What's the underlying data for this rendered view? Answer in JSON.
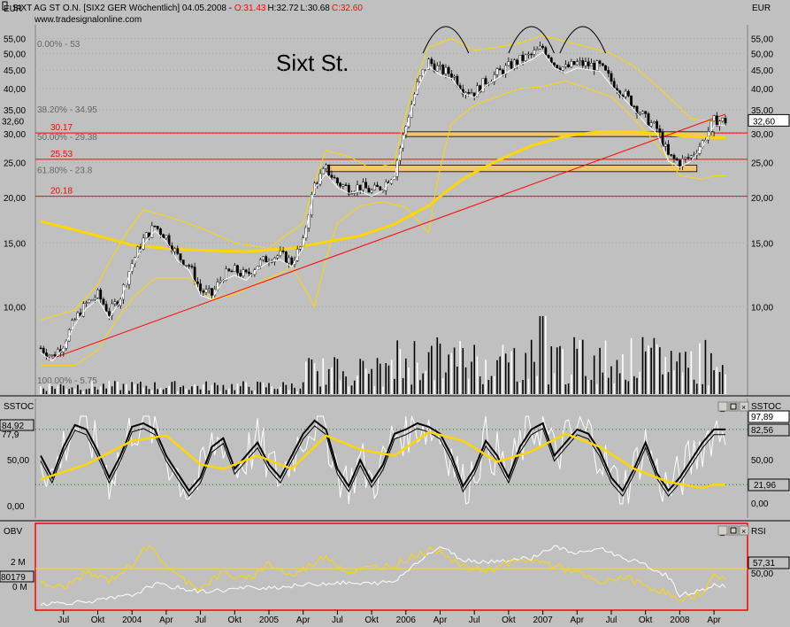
{
  "header": {
    "unit_left": "EUR",
    "unit_right": "EUR",
    "title_prefix": "SIXT AG ST O.N. [SIX2 GER  Wöchentlich] 04.05.2008 - ",
    "open": "O:31.43",
    "high": "H:32.72",
    "low": "L:30.68",
    "close": "C:32.60",
    "website": "www.tradesignalonline.com"
  },
  "annotation": "Sixt St.",
  "colors": {
    "background": "#c0c0c0",
    "sma": "#ffd700",
    "bollinger": "#ffd700",
    "support_lines": "#ff0000",
    "zones": "#f0c674",
    "up_candle": "#ffffff",
    "down_candle": "#000000",
    "frame": "#ff0000",
    "stoch_k": "#000000",
    "stoch_white": "#ffffff"
  },
  "chart_data": [
    {
      "type": "candlestick",
      "title": "SIXT AG ST O.N. [SIX2 GER Wöchentlich]",
      "ylabel": "EUR",
      "y_scale": "log",
      "ylim": [
        6.8,
        58
      ],
      "y_ticks": [
        "55,00",
        "50,00",
        "45,00",
        "40,00",
        "35,00",
        "30,00",
        "25,00",
        "20,00",
        "15,00",
        "10,00"
      ],
      "last_value": "32,60",
      "fib_levels": [
        {
          "label": "0.00% - 53",
          "value": 53
        },
        {
          "label": "38.20% - 34.95",
          "value": 34.95
        },
        {
          "label": "50.00% - 29.38",
          "value": 29.38
        },
        {
          "label": "61.80% - 23.8",
          "value": 23.8
        },
        {
          "label": "100.00% - 5.75",
          "value": 5.75
        }
      ],
      "support_levels": [
        {
          "label": "30.17",
          "value": 30.17
        },
        {
          "label": "25.53",
          "value": 25.53
        },
        {
          "label": "20.18",
          "value": 20.18
        }
      ],
      "x_labels": [
        "Jul",
        "Okt",
        "2004",
        "Apr",
        "Jul",
        "Okt",
        "2005",
        "Apr",
        "Jul",
        "Okt",
        "2006",
        "Apr",
        "Jul",
        "Okt",
        "2007",
        "Apr",
        "Jul",
        "Okt",
        "2008",
        "Apr"
      ],
      "x_index": [
        2,
        5,
        8,
        11,
        14,
        17,
        20,
        23,
        26,
        29,
        32,
        35,
        38,
        41,
        44,
        47,
        50,
        53,
        56,
        59
      ],
      "close_anchors": [
        [
          0,
          7.7
        ],
        [
          1,
          7.3
        ],
        [
          2,
          7.9
        ],
        [
          3,
          9.2
        ],
        [
          4,
          10.2
        ],
        [
          5,
          10.8
        ],
        [
          6,
          9.6
        ],
        [
          7,
          10.7
        ],
        [
          8,
          13.2
        ],
        [
          9,
          15.3
        ],
        [
          10,
          16.7
        ],
        [
          11,
          15.6
        ],
        [
          12,
          13.8
        ],
        [
          13,
          13.0
        ],
        [
          14,
          11.1
        ],
        [
          15,
          10.8
        ],
        [
          16,
          12.2
        ],
        [
          17,
          12.6
        ],
        [
          18,
          12.2
        ],
        [
          19,
          13.1
        ],
        [
          20,
          13.7
        ],
        [
          21,
          13.9
        ],
        [
          22,
          13.3
        ],
        [
          23,
          15.0
        ],
        [
          24,
          21.8
        ],
        [
          25,
          24.0
        ],
        [
          26,
          22.0
        ],
        [
          27,
          21.2
        ],
        [
          28,
          21.5
        ],
        [
          29,
          20.8
        ],
        [
          30,
          21.6
        ],
        [
          31,
          23.5
        ],
        [
          32,
          31.5
        ],
        [
          33,
          41.0
        ],
        [
          34,
          47.5
        ],
        [
          35,
          45.0
        ],
        [
          36,
          44.0
        ],
        [
          37,
          40.0
        ],
        [
          38,
          39.0
        ],
        [
          39,
          42.0
        ],
        [
          40,
          44.0
        ],
        [
          41,
          46.0
        ],
        [
          42,
          48.0
        ],
        [
          43,
          49.5
        ],
        [
          44,
          52.0
        ],
        [
          45,
          47.0
        ],
        [
          46,
          45.5
        ],
        [
          47,
          47.0
        ],
        [
          48,
          46.5
        ],
        [
          49,
          46.0
        ],
        [
          50,
          42.0
        ],
        [
          51,
          39.0
        ],
        [
          52,
          36.0
        ],
        [
          53,
          33.0
        ],
        [
          54,
          31.0
        ],
        [
          55,
          26.0
        ],
        [
          56,
          25.0
        ],
        [
          57,
          26.0
        ],
        [
          58,
          28.5
        ],
        [
          59,
          32.6
        ]
      ],
      "sma_anchors": [
        [
          0,
          17.2
        ],
        [
          3,
          16.3
        ],
        [
          8,
          14.8
        ],
        [
          12,
          14.4
        ],
        [
          18,
          14.2
        ],
        [
          22,
          14.5
        ],
        [
          25,
          15.1
        ],
        [
          28,
          15.7
        ],
        [
          31,
          16.9
        ],
        [
          34,
          19.0
        ],
        [
          37,
          22.5
        ],
        [
          40,
          25.3
        ],
        [
          43,
          27.8
        ],
        [
          46,
          29.6
        ],
        [
          49,
          30.4
        ],
        [
          52,
          30.4
        ],
        [
          55,
          29.9
        ],
        [
          57,
          29.5
        ],
        [
          59,
          29.3
        ]
      ],
      "bollinger_upper": [
        [
          0,
          9.2
        ],
        [
          3,
          9.8
        ],
        [
          5,
          11.5
        ],
        [
          9,
          18.5
        ],
        [
          11,
          17.8
        ],
        [
          14,
          16.5
        ],
        [
          17,
          15.0
        ],
        [
          20,
          14.5
        ],
        [
          23,
          17.0
        ],
        [
          25,
          27.0
        ],
        [
          27,
          26.0
        ],
        [
          29,
          24.0
        ],
        [
          31,
          25.0
        ],
        [
          34,
          52.0
        ],
        [
          36,
          55.0
        ],
        [
          38,
          51.0
        ],
        [
          40,
          52.0
        ],
        [
          42,
          53.5
        ],
        [
          44,
          56.0
        ],
        [
          46,
          54.0
        ],
        [
          48,
          52.0
        ],
        [
          50,
          50.0
        ],
        [
          52,
          46.0
        ],
        [
          55,
          38.0
        ],
        [
          57,
          33.0
        ],
        [
          59,
          32.5
        ]
      ],
      "bollinger_lower": [
        [
          0,
          6.9
        ],
        [
          3,
          6.9
        ],
        [
          5,
          7.6
        ],
        [
          8,
          10.5
        ],
        [
          10,
          12.0
        ],
        [
          13,
          12.0
        ],
        [
          15,
          10.5
        ],
        [
          17,
          10.8
        ],
        [
          20,
          12.0
        ],
        [
          22,
          12.8
        ],
        [
          24,
          10.0
        ],
        [
          26,
          17.0
        ],
        [
          28,
          19.0
        ],
        [
          30,
          19.5
        ],
        [
          32,
          18.8
        ],
        [
          34,
          16.0
        ],
        [
          36,
          32.0
        ],
        [
          38,
          36.0
        ],
        [
          40,
          38.0
        ],
        [
          42,
          40.0
        ],
        [
          44,
          40.5
        ],
        [
          46,
          42.0
        ],
        [
          48,
          40.0
        ],
        [
          50,
          38.0
        ],
        [
          52,
          33.0
        ],
        [
          54,
          28.0
        ],
        [
          56,
          23.0
        ],
        [
          58,
          22.5
        ],
        [
          59,
          23.0
        ]
      ],
      "trendline": {
        "from": [
          1,
          7.2
        ],
        "to": [
          60,
          34.0
        ]
      },
      "zones": [
        {
          "from_index": 32,
          "to_index": 59,
          "low": 29.5,
          "high": 30.4
        },
        {
          "from_index": 25,
          "to_index": 57.5,
          "low": 23.6,
          "high": 24.6
        }
      ],
      "volume_max_index": 44
    },
    {
      "type": "line",
      "title": "SSTOC",
      "ylim": [
        0,
        100
      ],
      "y_ticks": [
        "0,00",
        "50,00"
      ],
      "reference_lines": [
        84.92,
        21.96
      ],
      "value_labels": [
        "84,92",
        "77,9",
        "97,89",
        "82,56",
        "21,96"
      ],
      "k_anchors": [
        [
          0,
          55
        ],
        [
          1,
          30
        ],
        [
          2,
          65
        ],
        [
          3,
          90
        ],
        [
          4,
          85
        ],
        [
          5,
          60
        ],
        [
          6,
          30
        ],
        [
          7,
          55
        ],
        [
          8,
          88
        ],
        [
          9,
          92
        ],
        [
          10,
          85
        ],
        [
          11,
          55
        ],
        [
          12,
          35
        ],
        [
          13,
          15
        ],
        [
          14,
          30
        ],
        [
          15,
          65
        ],
        [
          16,
          75
        ],
        [
          17,
          40
        ],
        [
          18,
          55
        ],
        [
          19,
          70
        ],
        [
          20,
          45
        ],
        [
          21,
          30
        ],
        [
          22,
          55
        ],
        [
          23,
          80
        ],
        [
          24,
          95
        ],
        [
          25,
          85
        ],
        [
          26,
          40
        ],
        [
          27,
          20
        ],
        [
          28,
          50
        ],
        [
          29,
          25
        ],
        [
          30,
          45
        ],
        [
          31,
          80
        ],
        [
          32,
          85
        ],
        [
          33,
          92
        ],
        [
          34,
          88
        ],
        [
          35,
          80
        ],
        [
          36,
          55
        ],
        [
          37,
          20
        ],
        [
          38,
          40
        ],
        [
          39,
          72
        ],
        [
          40,
          55
        ],
        [
          41,
          30
        ],
        [
          42,
          65
        ],
        [
          43,
          85
        ],
        [
          44,
          92
        ],
        [
          45,
          55
        ],
        [
          46,
          70
        ],
        [
          47,
          85
        ],
        [
          48,
          80
        ],
        [
          49,
          60
        ],
        [
          50,
          30
        ],
        [
          51,
          15
        ],
        [
          52,
          40
        ],
        [
          53,
          70
        ],
        [
          54,
          35
        ],
        [
          55,
          15
        ],
        [
          56,
          30
        ],
        [
          57,
          50
        ],
        [
          58,
          70
        ],
        [
          59,
          85
        ]
      ],
      "signal_anchors": [
        [
          0,
          28
        ],
        [
          4,
          45
        ],
        [
          8,
          72
        ],
        [
          11,
          78
        ],
        [
          14,
          45
        ],
        [
          16,
          40
        ],
        [
          19,
          55
        ],
        [
          22,
          40
        ],
        [
          25,
          78
        ],
        [
          28,
          62
        ],
        [
          31,
          55
        ],
        [
          34,
          82
        ],
        [
          37,
          72
        ],
        [
          40,
          48
        ],
        [
          43,
          60
        ],
        [
          46,
          80
        ],
        [
          49,
          65
        ],
        [
          52,
          40
        ],
        [
          55,
          25
        ],
        [
          58,
          18
        ],
        [
          59,
          22
        ]
      ]
    },
    {
      "type": "line",
      "title": "OBV",
      "secondary_title": "RSI",
      "y_ticks": [
        "2 M",
        "0 M"
      ],
      "left_value": "80179",
      "right_labels": [
        "57,31",
        "50,00"
      ],
      "obv_anchors": [
        [
          0,
          4
        ],
        [
          2,
          5
        ],
        [
          5,
          8
        ],
        [
          8,
          15
        ],
        [
          10,
          30
        ],
        [
          12,
          25
        ],
        [
          14,
          20
        ],
        [
          16,
          22
        ],
        [
          18,
          25
        ],
        [
          21,
          26
        ],
        [
          24,
          30
        ],
        [
          26,
          32
        ],
        [
          28,
          30
        ],
        [
          31,
          33
        ],
        [
          33,
          60
        ],
        [
          35,
          80
        ],
        [
          37,
          62
        ],
        [
          39,
          60
        ],
        [
          41,
          62
        ],
        [
          43,
          65
        ],
        [
          45,
          80
        ],
        [
          47,
          70
        ],
        [
          49,
          78
        ],
        [
          51,
          65
        ],
        [
          53,
          55
        ],
        [
          55,
          40
        ],
        [
          56,
          15
        ],
        [
          58,
          22
        ],
        [
          59,
          28
        ]
      ],
      "rsi_anchors": [
        [
          0,
          30
        ],
        [
          2,
          25
        ],
        [
          4,
          45
        ],
        [
          6,
          35
        ],
        [
          8,
          55
        ],
        [
          9,
          80
        ],
        [
          10,
          72
        ],
        [
          12,
          40
        ],
        [
          14,
          25
        ],
        [
          16,
          45
        ],
        [
          18,
          35
        ],
        [
          20,
          58
        ],
        [
          22,
          40
        ],
        [
          25,
          68
        ],
        [
          27,
          45
        ],
        [
          29,
          52
        ],
        [
          31,
          55
        ],
        [
          33,
          70
        ],
        [
          35,
          76
        ],
        [
          37,
          52
        ],
        [
          39,
          48
        ],
        [
          41,
          58
        ],
        [
          43,
          62
        ],
        [
          45,
          55
        ],
        [
          47,
          45
        ],
        [
          49,
          30
        ],
        [
          51,
          40
        ],
        [
          53,
          28
        ],
        [
          55,
          18
        ],
        [
          56,
          5
        ],
        [
          58,
          20
        ],
        [
          59,
          40
        ]
      ]
    }
  ]
}
